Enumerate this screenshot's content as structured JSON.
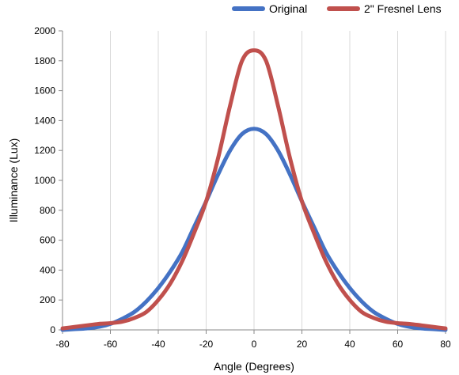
{
  "chart_data": {
    "type": "line",
    "title": "",
    "xlabel": "Angle (Degrees)",
    "ylabel": "Illuminance (Lux)",
    "xlim": [
      -80,
      80
    ],
    "ylim": [
      0,
      2000
    ],
    "x_ticks": [
      -80,
      -60,
      -40,
      -20,
      0,
      20,
      40,
      60,
      80
    ],
    "y_ticks": [
      0,
      200,
      400,
      600,
      800,
      1000,
      1200,
      1400,
      1600,
      1800,
      2000
    ],
    "grid": "vertical",
    "legend_position": "top-right",
    "x": [
      -80,
      -75,
      -70,
      -65,
      -60,
      -55,
      -50,
      -45,
      -40,
      -35,
      -30,
      -25,
      -20,
      -15,
      -10,
      -5,
      0,
      5,
      10,
      15,
      20,
      25,
      30,
      35,
      40,
      45,
      50,
      55,
      60,
      65,
      70,
      75,
      80
    ],
    "series": [
      {
        "name": "Original",
        "color": "#4472c4",
        "values": [
          0,
          5,
          10,
          20,
          40,
          75,
          120,
          190,
          280,
          390,
          520,
          690,
          860,
          1040,
          1200,
          1310,
          1345,
          1310,
          1200,
          1040,
          860,
          690,
          520,
          390,
          280,
          190,
          120,
          75,
          40,
          20,
          10,
          5,
          0
        ]
      },
      {
        "name": "2\" Fresnel Lens",
        "color": "#c0504d",
        "values": [
          10,
          20,
          30,
          40,
          45,
          55,
          80,
          120,
          200,
          310,
          460,
          650,
          860,
          1150,
          1500,
          1800,
          1870,
          1800,
          1500,
          1150,
          860,
          650,
          460,
          310,
          200,
          120,
          80,
          55,
          45,
          40,
          30,
          20,
          10
        ]
      }
    ]
  }
}
